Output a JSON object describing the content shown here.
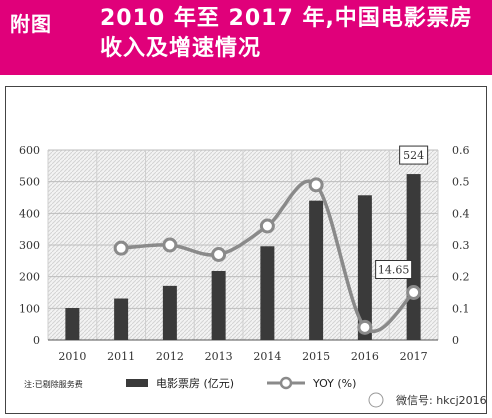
{
  "header": {
    "label": "附图",
    "title": "2010 年至 2017 年,中国电影票房收入及增速情况"
  },
  "chart_data": {
    "type": "bar",
    "categories": [
      "2010",
      "2011",
      "2012",
      "2013",
      "2014",
      "2015",
      "2016",
      "2017"
    ],
    "series": [
      {
        "name": "电影票房 (亿元)",
        "type": "bar",
        "axis": "left",
        "values": [
          101,
          131,
          171,
          218,
          296,
          440,
          457,
          524
        ]
      },
      {
        "name": "YOY (%)",
        "type": "line",
        "axis": "right",
        "values": [
          null,
          0.29,
          0.3,
          0.27,
          0.36,
          0.49,
          0.04,
          0.15
        ]
      }
    ],
    "ylim_left": [
      0,
      600
    ],
    "yticks_left": [
      "0",
      "100",
      "200",
      "300",
      "400",
      "500",
      "600"
    ],
    "ylim_right": [
      0,
      0.6
    ],
    "yticks_right": [
      "0",
      "0.1",
      "0.2",
      "0.3",
      "0.4",
      "0.5",
      "0.6"
    ],
    "annotations": {
      "bar_2017": "524",
      "yoy_2017": "14.65"
    },
    "legend": {
      "position": "bottom"
    },
    "note": "注:已剔除服务费",
    "grid": true
  },
  "watermark": "微信号: hkcj2016",
  "colors": {
    "header_bg": "#e0007a",
    "bar": "#3a3a3a",
    "line": "#8a8a8a"
  }
}
